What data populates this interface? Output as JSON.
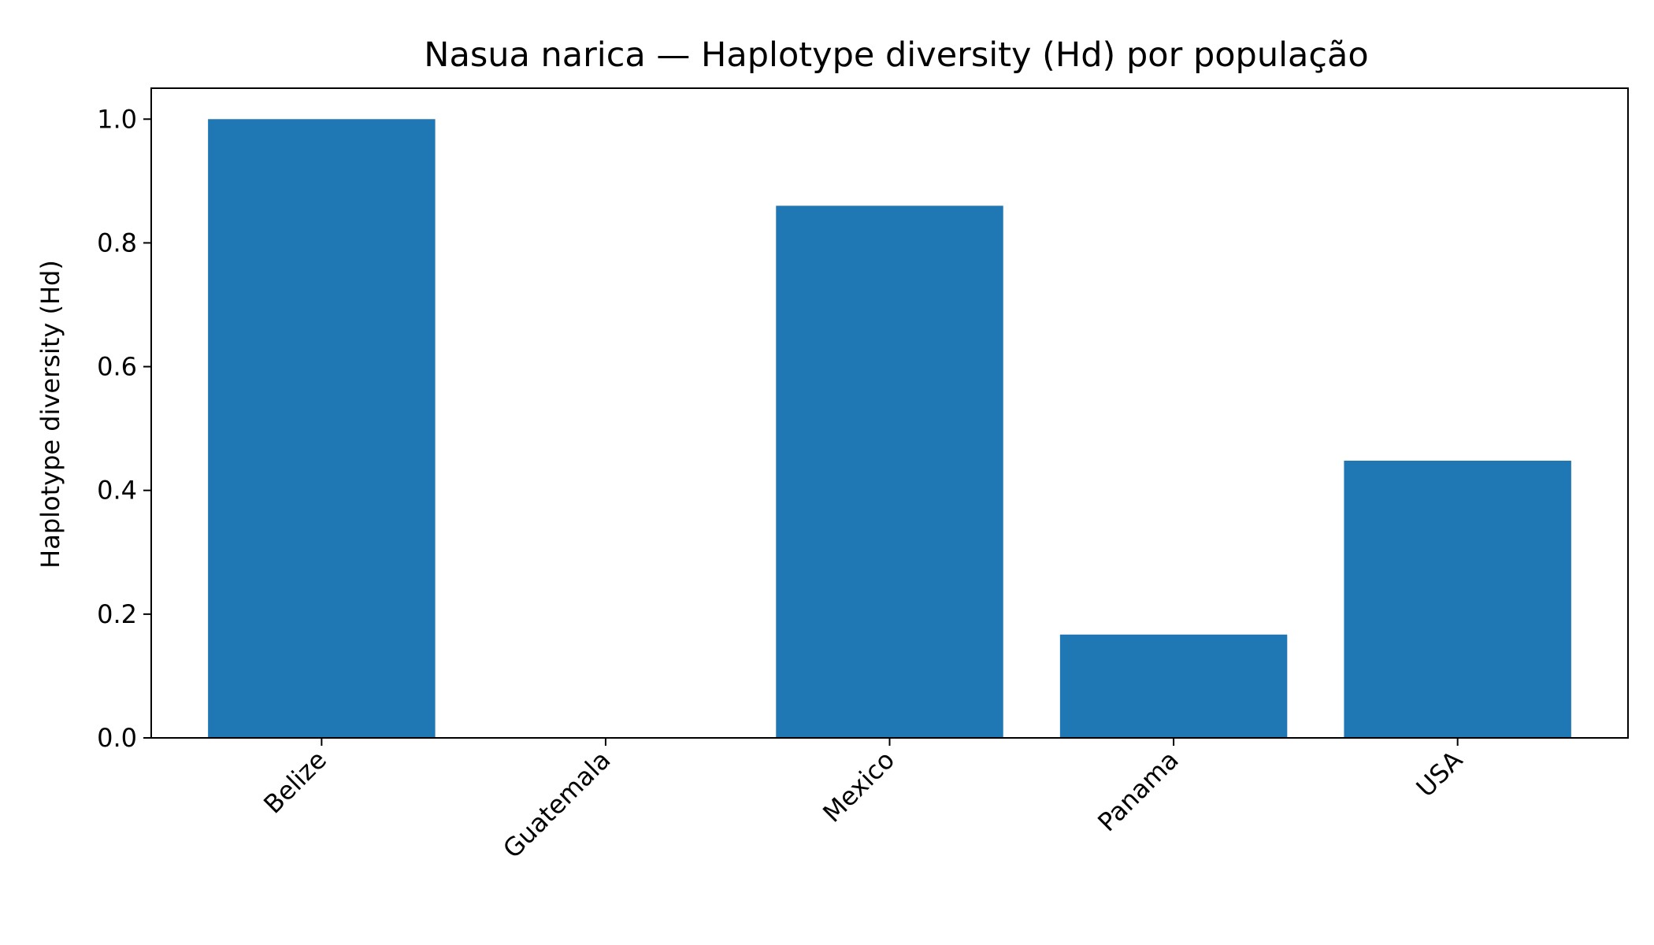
{
  "chart_data": {
    "type": "bar",
    "title": "Nasua narica — Haplotype diversity (Hd) por população",
    "xlabel": "",
    "ylabel": "Haplotype diversity (Hd)",
    "categories": [
      "Belize",
      "Guatemala",
      "Mexico",
      "Panama",
      "USA"
    ],
    "values": [
      1.0,
      0.0,
      0.86,
      0.167,
      0.448
    ],
    "ylim": [
      0,
      1.05
    ],
    "yticks": [
      "0.0",
      "0.2",
      "0.4",
      "0.6",
      "0.8",
      "1.0"
    ],
    "bar_color": "#1f77b4",
    "grid": false
  }
}
